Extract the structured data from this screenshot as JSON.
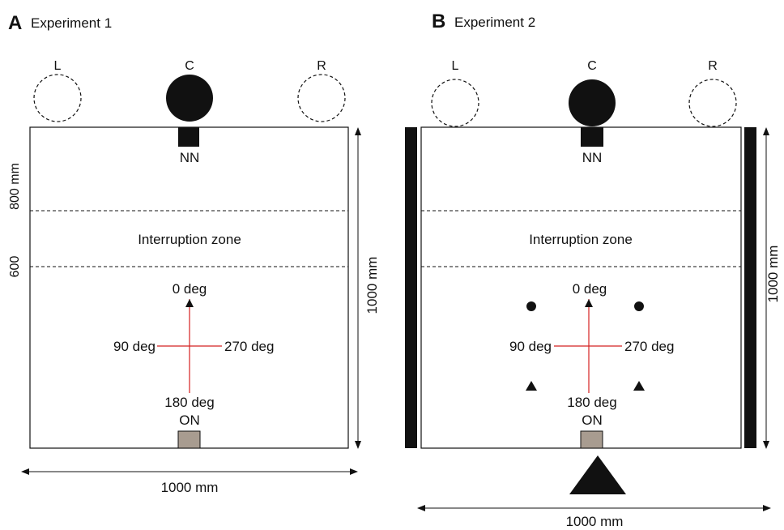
{
  "panel_a": {
    "letter": "A",
    "title": "Experiment 1",
    "speakers": [
      "L",
      "C",
      "R"
    ],
    "nn_label": "NN",
    "on_label": "ON",
    "zone_label": "Interruption zone",
    "tick_800": "800 mm",
    "tick_600": "600",
    "height_label": "1000 mm",
    "width_label": "1000 mm",
    "angle_0": "0 deg",
    "angle_90": "90 deg",
    "angle_180": "180 deg",
    "angle_270": "270 deg"
  },
  "panel_b": {
    "letter": "B",
    "title": "Experiment 2",
    "speakers": [
      "L",
      "C",
      "R"
    ],
    "nn_label": "NN",
    "on_label": "ON",
    "zone_label": "Interruption zone",
    "height_label": "1000 mm",
    "width_label": "1000 mm",
    "angle_0": "0 deg",
    "angle_90": "90 deg",
    "angle_180": "180 deg",
    "angle_270": "270 deg"
  },
  "colors": {
    "heading_red": "#d42020",
    "on_box": "#a89c90",
    "ink": "#111111"
  }
}
